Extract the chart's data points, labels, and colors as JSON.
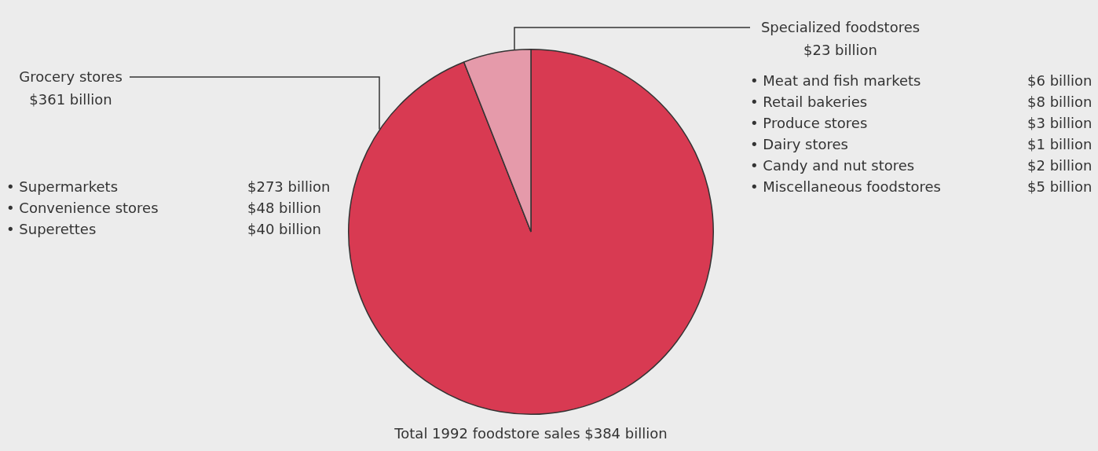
{
  "chart_data": {
    "type": "pie",
    "title": "Total 1992 foodstore sales $384 billion",
    "categories": [
      "Grocery stores",
      "Specialized foodstores"
    ],
    "values": [
      361,
      23
    ],
    "value_labels": [
      "$361 billion",
      "$23 billion"
    ],
    "colors": [
      "#d83a52",
      "#e59aaa"
    ],
    "legend": false,
    "annotations": [
      "• Supermarkets",
      "$273 billion",
      "• Convenience stores",
      "$48 billion",
      "• Superettes",
      "$40 billion",
      "• Meat and fish markets",
      "$6 billion",
      "• Retail bakeries",
      "$8 billion",
      "• Produce stores",
      "$3 billion",
      "• Dairy stores",
      "$1 billion",
      "• Candy and nut stores",
      "$2 billion",
      "• Miscellaneous foodstores",
      "$5 billion"
    ]
  }
}
